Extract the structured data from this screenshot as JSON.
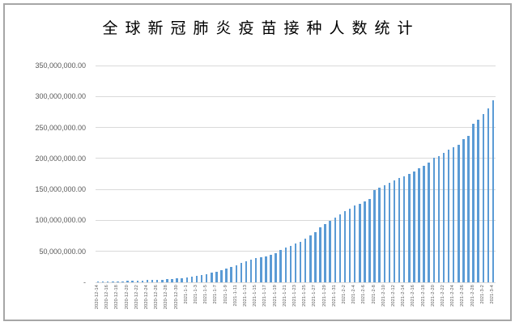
{
  "title": "全球新冠肺炎疫苗接种人数统计",
  "colors": {
    "bar": "#5B9BD5",
    "gridline": "#D9D9D9",
    "axis_text": "#595959",
    "frame_border": "#A6A6A6",
    "title_text": "#000000"
  },
  "chart_data": {
    "type": "bar",
    "title": "全球新冠肺炎疫苗接种人数统计",
    "xlabel": "",
    "ylabel": "",
    "ylim": [
      0,
      350000000
    ],
    "y_tick_interval": 50000000,
    "grid": true,
    "legend": false,
    "y_tick_labels_top_to_bottom": [
      "350,000,000.00",
      "300,000,000.00",
      "250,000,000.00",
      "200,000,000.00",
      "150,000,000.00",
      "100,000,000.00",
      "50,000,000.00",
      "-"
    ],
    "x_label_every": 2,
    "categories": [
      "2020-12-14",
      "2020-12-15",
      "2020-12-16",
      "2020-12-17",
      "2020-12-18",
      "2020-12-19",
      "2020-12-20",
      "2020-12-21",
      "2020-12-22",
      "2020-12-23",
      "2020-12-24",
      "2020-12-25",
      "2020-12-26",
      "2020-12-27",
      "2020-12-28",
      "2020-12-29",
      "2020-12-30",
      "2020-12-31",
      "2021-1-1",
      "2021-1-2",
      "2021-1-3",
      "2021-1-4",
      "2021-1-5",
      "2021-1-6",
      "2021-1-7",
      "2021-1-8",
      "2021-1-9",
      "2021-1-10",
      "2021-1-11",
      "2021-1-12",
      "2021-1-13",
      "2021-1-14",
      "2021-1-15",
      "2021-1-16",
      "2021-1-17",
      "2021-1-18",
      "2021-1-19",
      "2021-1-20",
      "2021-1-21",
      "2021-1-22",
      "2021-1-23",
      "2021-1-24",
      "2021-1-25",
      "2021-1-26",
      "2021-1-27",
      "2021-1-28",
      "2021-1-29",
      "2021-1-30",
      "2021-1-31",
      "2021-2-1",
      "2021-2-2",
      "2021-2-3",
      "2021-2-4",
      "2021-2-5",
      "2021-2-6",
      "2021-2-7",
      "2021-2-8",
      "2021-2-9",
      "2021-2-10",
      "2021-2-11",
      "2021-2-12",
      "2021-2-13",
      "2021-2-14",
      "2021-2-15",
      "2021-2-16",
      "2021-2-17",
      "2021-2-18",
      "2021-2-19",
      "2021-2-20",
      "2021-2-21",
      "2021-2-22",
      "2021-2-23",
      "2021-2-24",
      "2021-2-25",
      "2021-2-26",
      "2021-2-27",
      "2021-2-28",
      "2021-3-1",
      "2021-3-2",
      "2021-3-3",
      "2021-3-4"
    ],
    "values": [
      320000,
      580000,
      860000,
      1120000,
      1400000,
      1700000,
      2020000,
      2330000,
      2660000,
      3000000,
      3320000,
      3630000,
      3980000,
      4330000,
      4800000,
      5420000,
      6100000,
      7020000,
      8010000,
      9050000,
      10240000,
      11600000,
      13210000,
      15100000,
      17320000,
      19700000,
      22310000,
      25030000,
      27920000,
      31100000,
      34580000,
      36930000,
      39010000,
      40820000,
      42440000,
      44120000,
      47300000,
      52880000,
      56030000,
      58720000,
      62600000,
      65810000,
      70120000,
      75330000,
      81210000,
      88520000,
      94600000,
      99300000,
      104020000,
      109510000,
      114930000,
      119320000,
      123600000,
      127310000,
      131020000,
      134530000,
      148300000,
      152610000,
      156230000,
      160900000,
      164810000,
      168220000,
      171400000,
      174530000,
      178920000,
      183810000,
      188300000,
      193820000,
      200710000,
      204330000,
      208420000,
      214100000,
      217800000,
      222230000,
      231010000,
      236200000,
      255820000,
      263000000,
      271500000,
      280200000,
      293700000
    ]
  }
}
